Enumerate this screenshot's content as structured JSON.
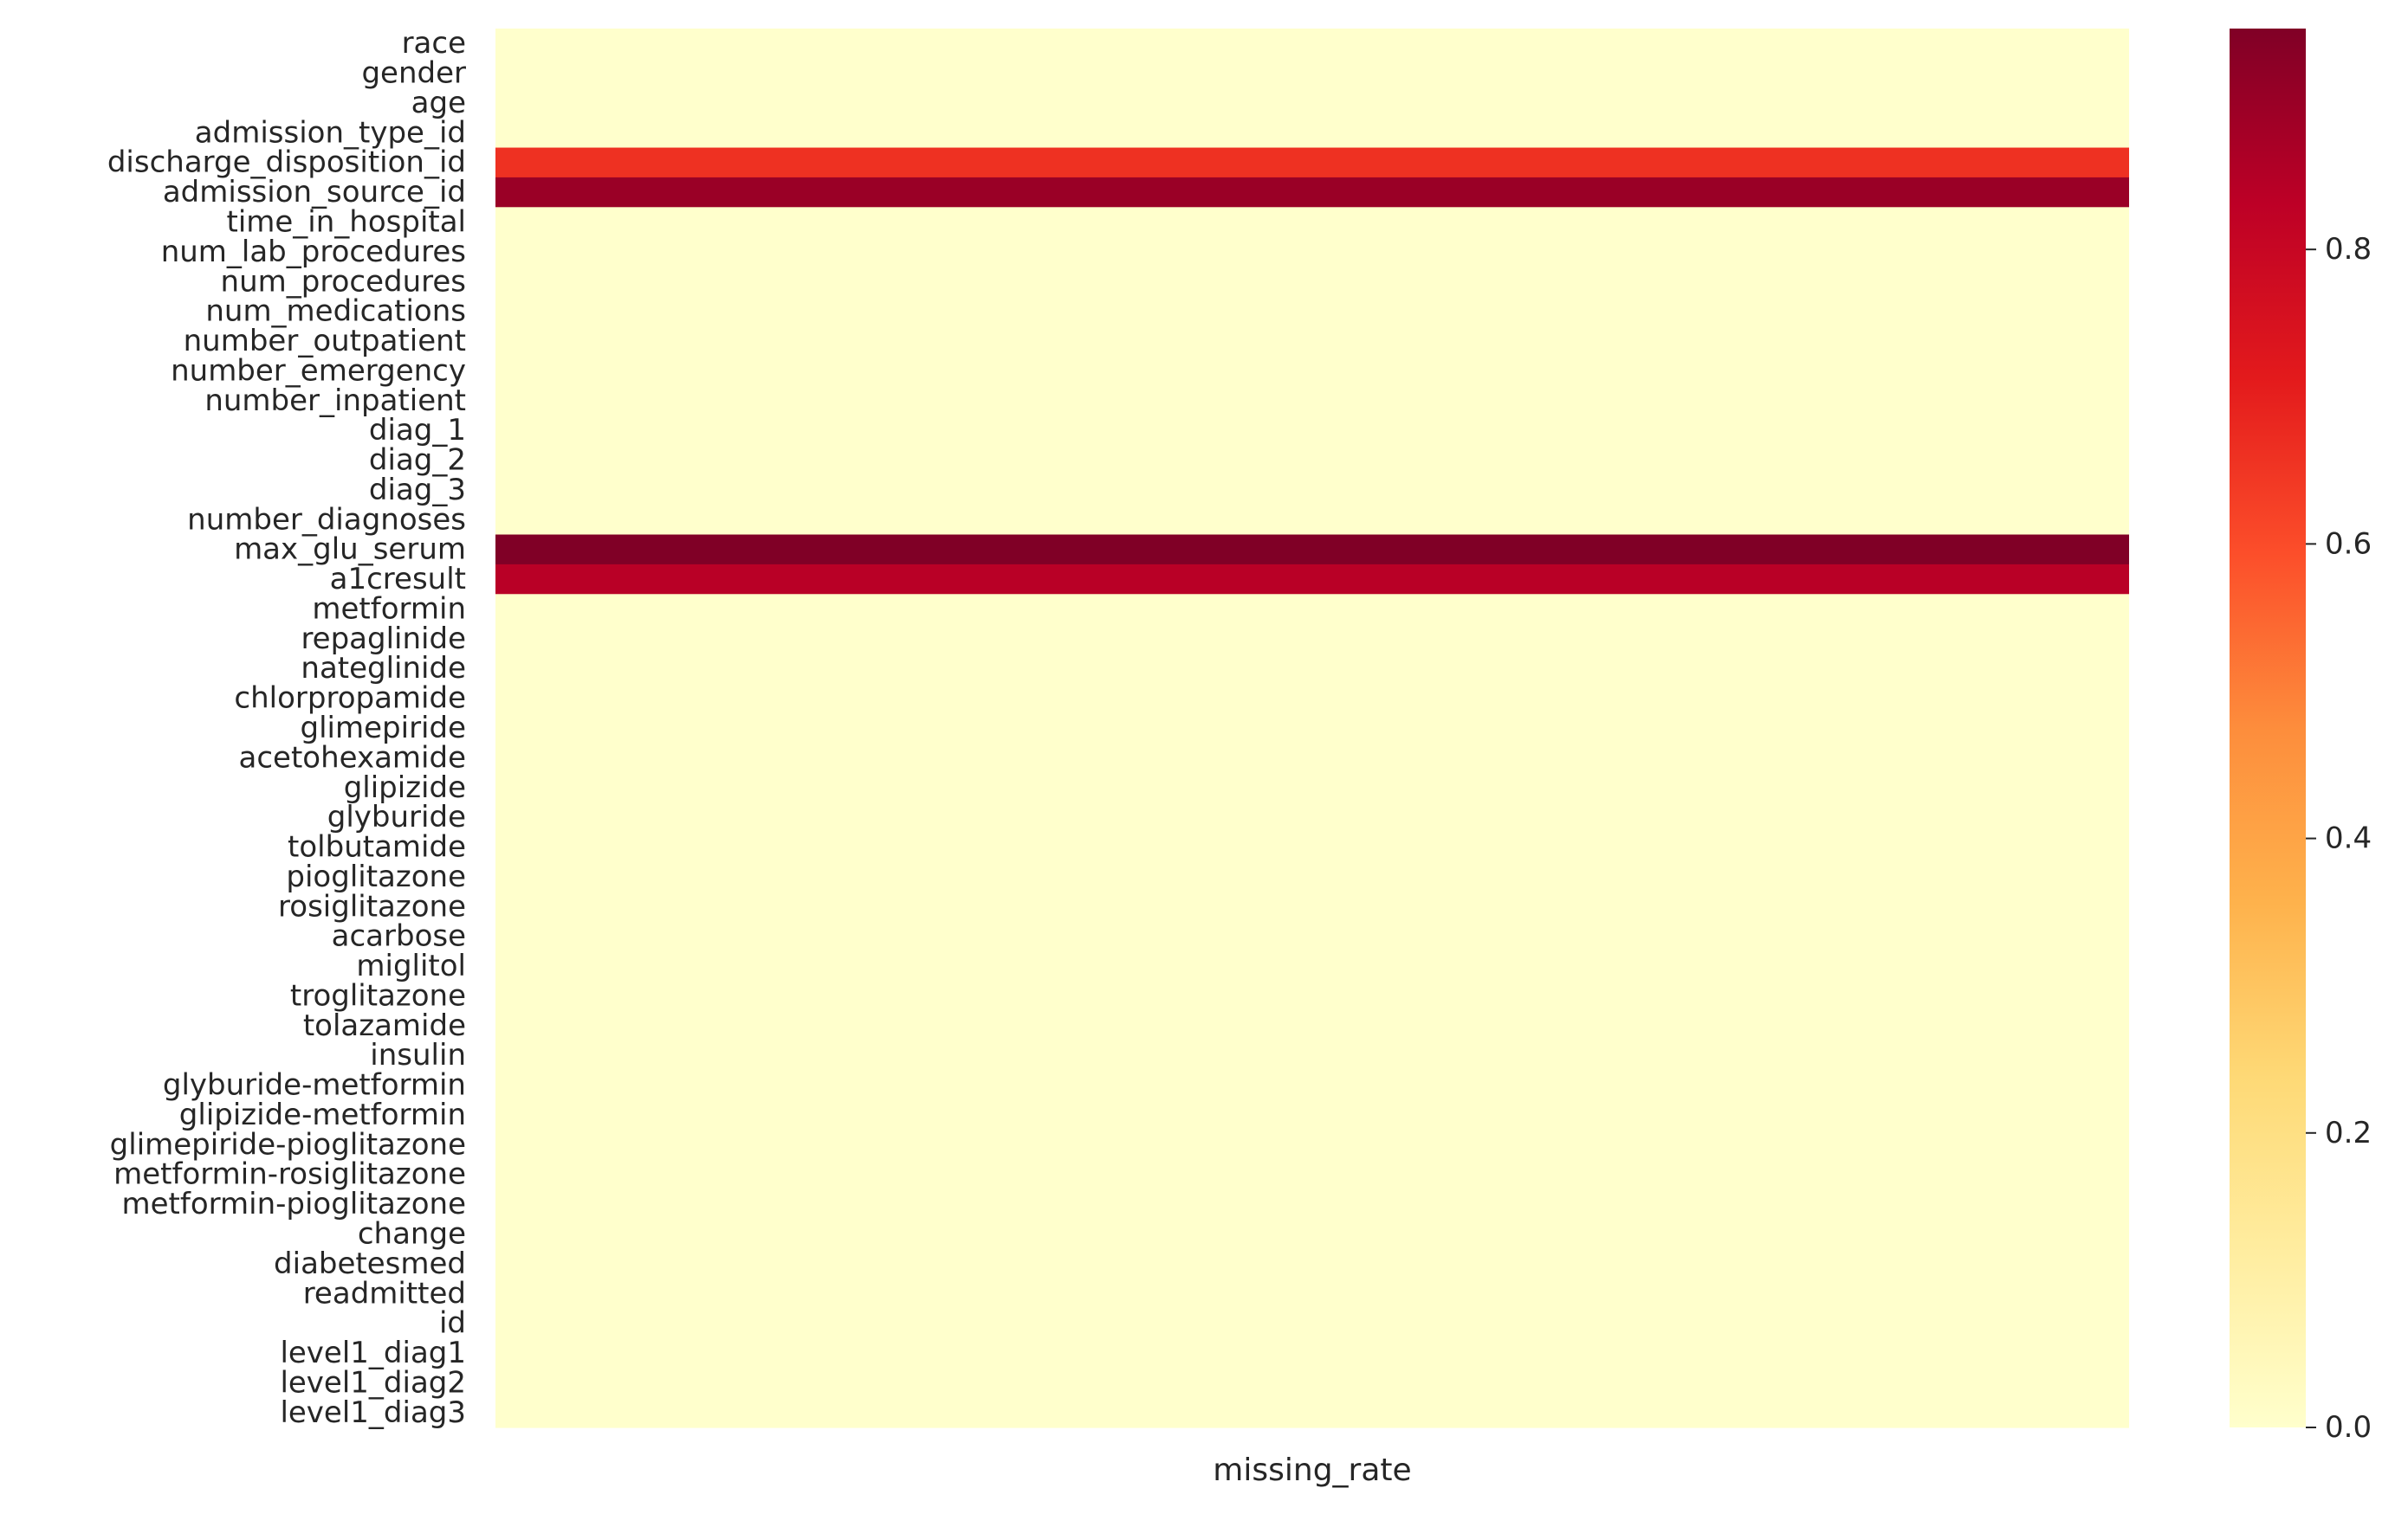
{
  "chart_data": {
    "type": "heatmap",
    "title": "",
    "xlabel": "missing_rate",
    "ylabel": "",
    "x_categories": [
      "missing_rate"
    ],
    "rows": [
      "race",
      "gender",
      "age",
      "admission_type_id",
      "discharge_disposition_id",
      "admission_source_id",
      "time_in_hospital",
      "num_lab_procedures",
      "num_procedures",
      "num_medications",
      "number_outpatient",
      "number_emergency",
      "number_inpatient",
      "diag_1",
      "diag_2",
      "diag_3",
      "number_diagnoses",
      "max_glu_serum",
      "a1cresult",
      "metformin",
      "repaglinide",
      "nateglinide",
      "chlorpropamide",
      "glimepiride",
      "acetohexamide",
      "glipizide",
      "glyburide",
      "tolbutamide",
      "pioglitazone",
      "rosiglitazone",
      "acarbose",
      "miglitol",
      "troglitazone",
      "tolazamide",
      "insulin",
      "glyburide-metformin",
      "glipizide-metformin",
      "glimepiride-pioglitazone",
      "metformin-rosiglitazone",
      "metformin-pioglitazone",
      "change",
      "diabetesmed",
      "readmitted",
      "id",
      "level1_diag1",
      "level1_diag2",
      "level1_diag3"
    ],
    "values": [
      0,
      0,
      0,
      0,
      0.66,
      0.9,
      0,
      0,
      0,
      0,
      0,
      0,
      0,
      0,
      0,
      0,
      0,
      0.95,
      0.84,
      0,
      0,
      0,
      0,
      0,
      0,
      0,
      0,
      0,
      0,
      0,
      0,
      0,
      0,
      0,
      0,
      0,
      0,
      0,
      0,
      0,
      0,
      0,
      0,
      0,
      0,
      0,
      0
    ],
    "colorbar": {
      "colormap": "YlOrRd",
      "min": 0,
      "max": 0.95,
      "ticks": [
        "0.0",
        "0.2",
        "0.4",
        "0.6",
        "0.8"
      ],
      "tick_values": [
        0,
        0.2,
        0.4,
        0.6,
        0.8
      ]
    }
  }
}
